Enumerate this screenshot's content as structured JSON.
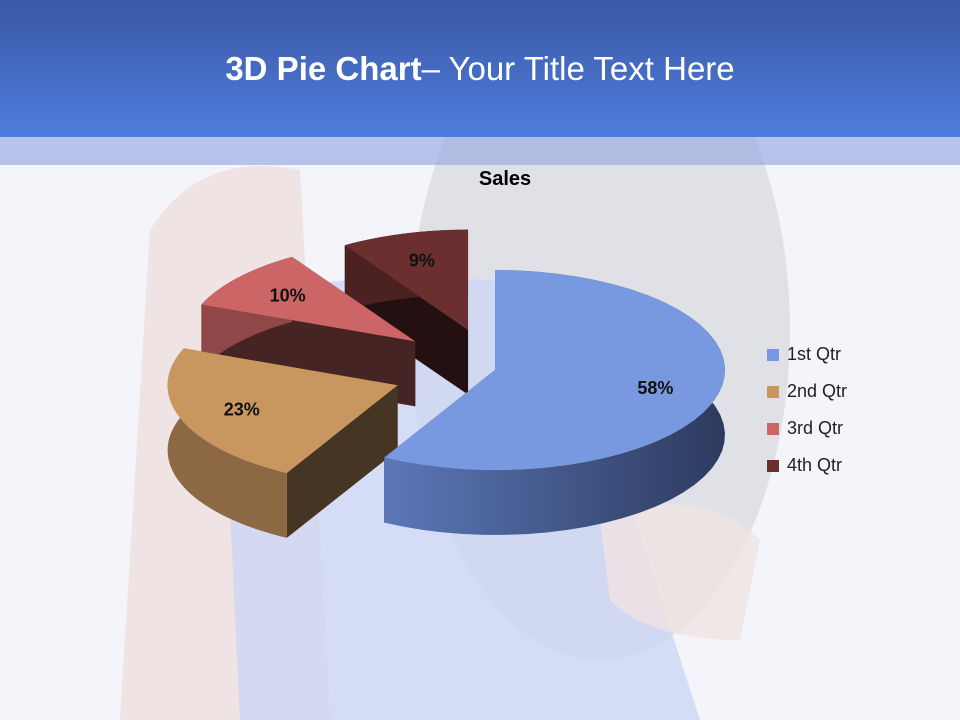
{
  "slide": {
    "title_bold": "3D Pie Chart",
    "title_rest": "– Your Title Text Here"
  },
  "chart_data": {
    "type": "pie",
    "variant": "3d-exploded",
    "title": "Sales",
    "categories": [
      "1st Qtr",
      "2nd Qtr",
      "3rd Qtr",
      "4th Qtr"
    ],
    "values": [
      58,
      23,
      10,
      9
    ],
    "labels": [
      "58%",
      "23%",
      "10%",
      "9%"
    ],
    "colors": [
      "#7899e0",
      "#c99660",
      "#cc6666",
      "#6b2f30"
    ],
    "legend_position": "right"
  }
}
